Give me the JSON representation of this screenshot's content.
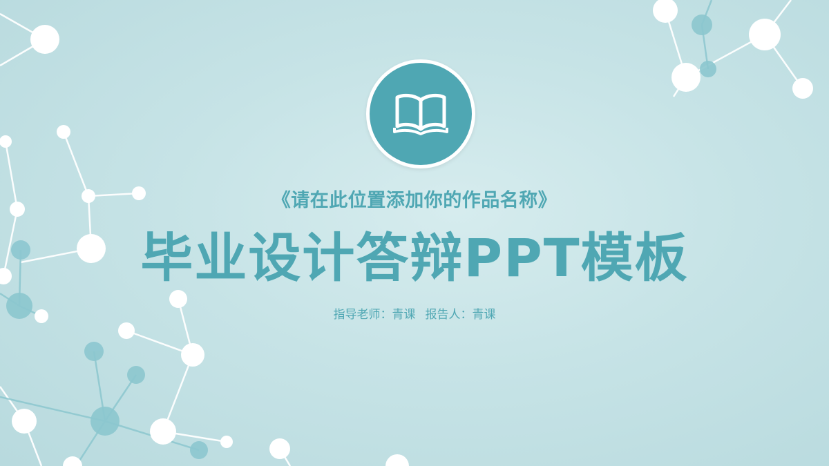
{
  "slide": {
    "subtitle": "《请在此位置添加你的作品名称》",
    "title": "毕业设计答辩PPT模板",
    "advisor_label": "指导老师：青课",
    "presenter_label": "报告人：青课"
  },
  "icons": {
    "badge": "open-book-icon"
  },
  "colors": {
    "accent": "#4fa7b3",
    "background": "#c6e3e6",
    "node": "#ffffff",
    "node_muted": "#8cc7cf"
  }
}
